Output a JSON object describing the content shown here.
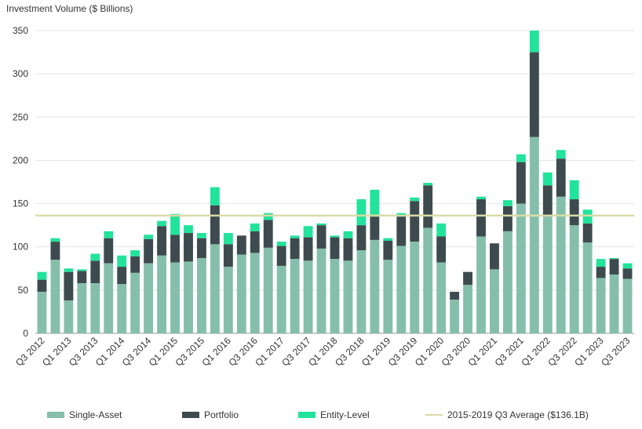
{
  "chart_data": {
    "type": "bar",
    "stacked": true,
    "title": "",
    "ylabel": "Investment Volume ($ Billions)",
    "xlabel": "",
    "ylim": [
      0,
      350
    ],
    "yticks": [
      0,
      50,
      100,
      150,
      200,
      250,
      300,
      350
    ],
    "grid": "horizontal",
    "legend_position": "bottom",
    "categories": [
      "Q3 2012",
      "Q4 2012",
      "Q1 2013",
      "Q2 2013",
      "Q3 2013",
      "Q4 2013",
      "Q1 2014",
      "Q2 2014",
      "Q3 2014",
      "Q4 2014",
      "Q1 2015",
      "Q2 2015",
      "Q3 2015",
      "Q4 2015",
      "Q1 2016",
      "Q2 2016",
      "Q3 2016",
      "Q4 2016",
      "Q1 2017",
      "Q2 2017",
      "Q3 2017",
      "Q4 2017",
      "Q1 2018",
      "Q2 2018",
      "Q3 2018",
      "Q4 2018",
      "Q1 2019",
      "Q2 2019",
      "Q3 2019",
      "Q4 2019",
      "Q1 2020",
      "Q2 2020",
      "Q3 2020",
      "Q4 2020",
      "Q1 2021",
      "Q2 2021",
      "Q3 2021",
      "Q4 2021",
      "Q1 2022",
      "Q2 2022",
      "Q3 2022",
      "Q4 2022",
      "Q1 2023",
      "Q2 2023",
      "Q3 2023"
    ],
    "visible_tick_labels": [
      "Q3 2012",
      "Q1 2013",
      "Q3 2013",
      "Q1 2014",
      "Q3 2014",
      "Q1 2015",
      "Q3 2015",
      "Q1 2016",
      "Q3 2016",
      "Q1 2017",
      "Q3 2017",
      "Q1 2018",
      "Q3 2018",
      "Q1 2019",
      "Q3 2019",
      "Q1 2020",
      "Q3 2020",
      "Q1 2021",
      "Q3 2021",
      "Q1 2022",
      "Q3 2022",
      "Q1 2023",
      "Q3 2023"
    ],
    "series": [
      {
        "name": "Single-Asset",
        "color": "#85bfac",
        "values": [
          48,
          85,
          38,
          58,
          58,
          81,
          57,
          70,
          81,
          90,
          82,
          83,
          87,
          103,
          77,
          91,
          93,
          99,
          78,
          86,
          84,
          98,
          86,
          84,
          96,
          108,
          85,
          101,
          106,
          122,
          82,
          39,
          56,
          112,
          74,
          118,
          150,
          227,
          135,
          158,
          125,
          105,
          64,
          68,
          63
        ]
      },
      {
        "name": "Portfolio",
        "color": "#3d4b4e",
        "values": [
          14,
          21,
          33,
          14,
          26,
          29,
          20,
          19,
          28,
          34,
          32,
          33,
          23,
          45,
          26,
          22,
          25,
          32,
          23,
          24,
          27,
          27,
          25,
          26,
          29,
          27,
          22,
          34,
          47,
          49,
          30,
          9,
          15,
          43,
          30,
          29,
          48,
          98,
          36,
          44,
          30,
          22,
          13,
          18,
          12
        ]
      },
      {
        "name": "Entity-Level",
        "color": "#22e39b",
        "values": [
          9,
          4,
          4,
          2,
          8,
          8,
          13,
          7,
          5,
          6,
          24,
          9,
          6,
          21,
          13,
          0,
          9,
          8,
          5,
          3,
          13,
          2,
          2,
          8,
          30,
          31,
          3,
          4,
          4,
          3,
          15,
          0,
          0,
          3,
          0,
          7,
          9,
          27,
          15,
          10,
          22,
          16,
          9,
          1,
          6
        ]
      }
    ],
    "reference_line": {
      "name": "2015-2019 Q3 Average ($136.1B)",
      "value": 136.1,
      "color": "#d9dba6"
    }
  }
}
